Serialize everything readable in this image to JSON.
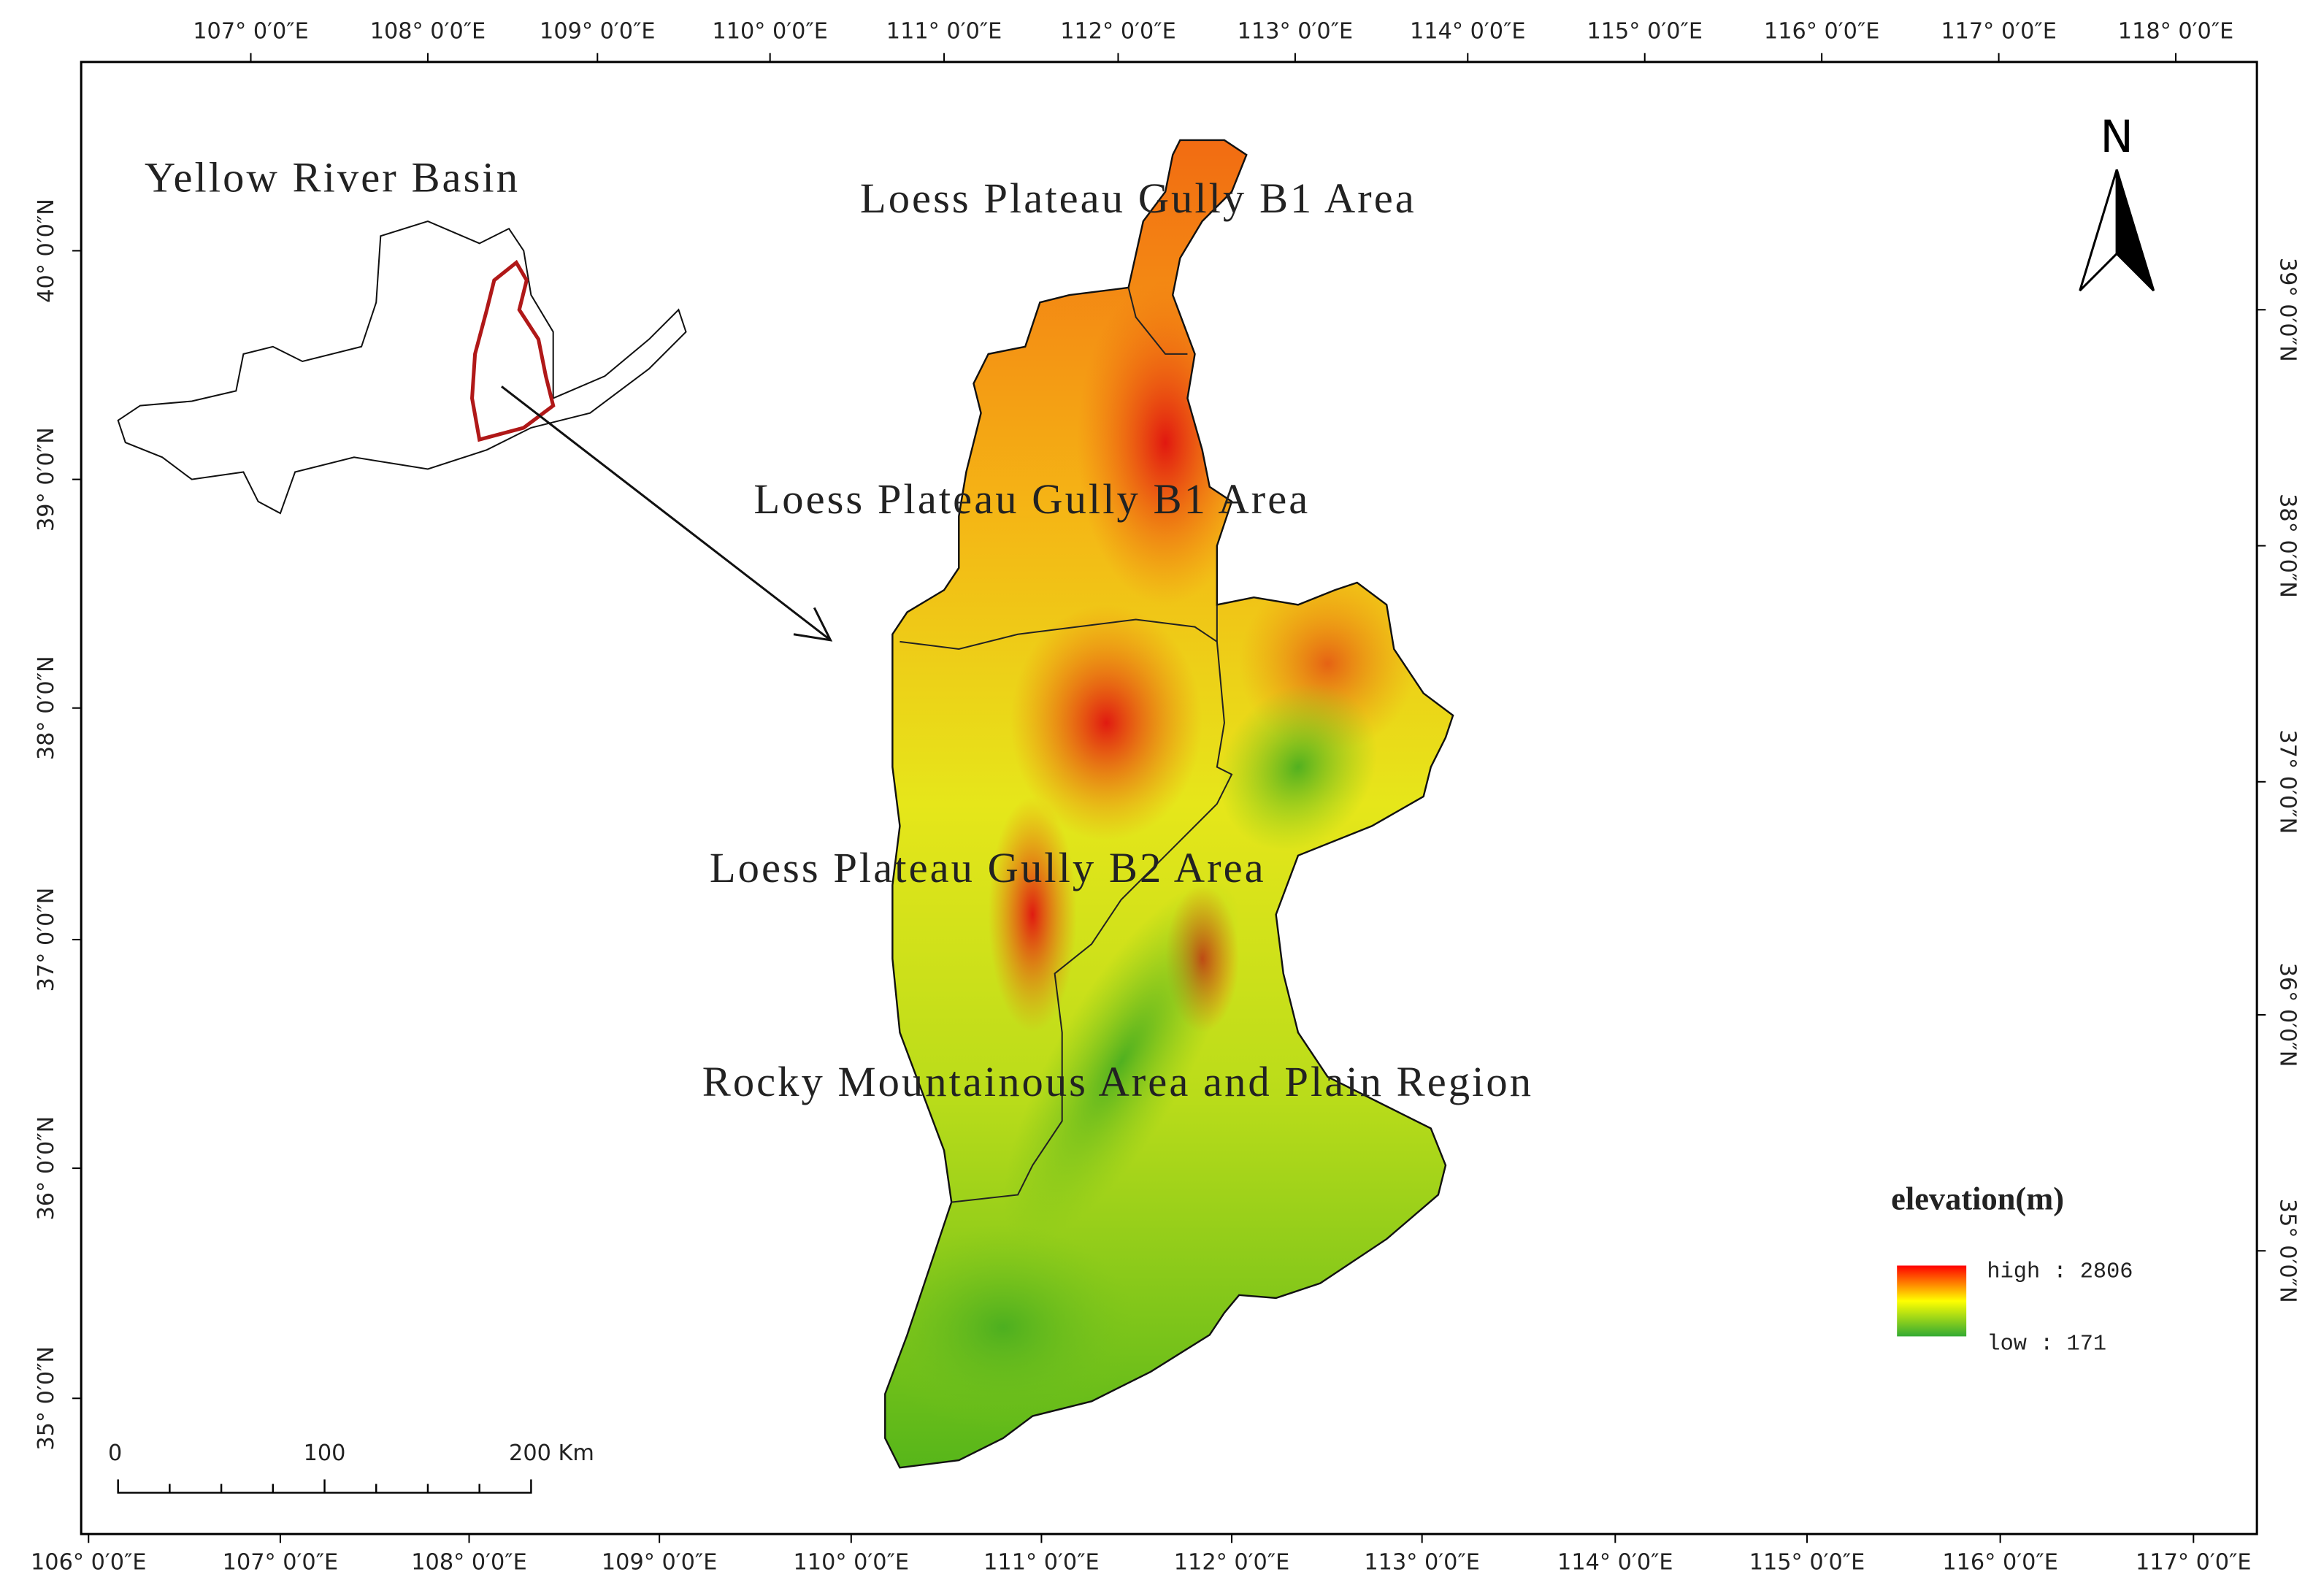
{
  "map": {
    "top_labels": [
      "107° 0′0″E",
      "108° 0′0″E",
      "109° 0′0″E",
      "110° 0′0″E",
      "111° 0′0″E",
      "112° 0′0″E",
      "113° 0′0″E",
      "114° 0′0″E",
      "115° 0′0″E",
      "116° 0′0″E",
      "117° 0′0″E",
      "118° 0′0″E"
    ],
    "bottom_labels": [
      "106° 0′0″E",
      "107° 0′0″E",
      "108° 0′0″E",
      "109° 0′0″E",
      "110° 0′0″E",
      "111° 0′0″E",
      "112° 0′0″E",
      "113° 0′0″E",
      "114° 0′0″E",
      "115° 0′0″E",
      "116° 0′0″E",
      "117° 0′0″E"
    ],
    "left_labels": [
      "40° 0′0″N",
      "39° 0′0″N",
      "38° 0′0″N",
      "37° 0′0″N",
      "36° 0′0″N",
      "35° 0′0″N"
    ],
    "right_labels": [
      "39° 0′0″N",
      "38° 0′0″N",
      "37° 0′0″N",
      "36° 0′0″N",
      "35° 0′0″N"
    ],
    "inset_title": "Yellow River Basin",
    "region_labels": [
      "Loess Plateau Gully B1 Area",
      "Loess Plateau Gully B1 Area",
      "Loess Plateau Gully B2 Area",
      "Rocky Mountainous Area and Plain Region"
    ],
    "north_label": "N",
    "legend": {
      "title": "elevation(m)",
      "high": "high : 2806",
      "low": "low : 171"
    },
    "scale_bar": [
      "0",
      "100",
      "200 Km"
    ]
  }
}
